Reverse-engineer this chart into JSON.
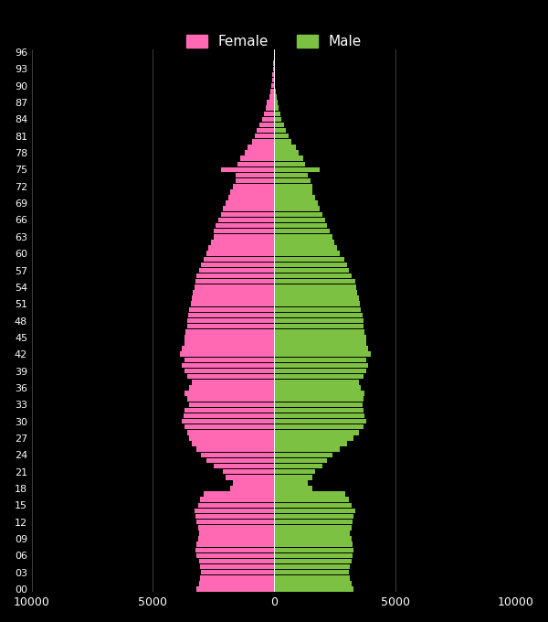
{
  "background_color": "#000000",
  "female_color": "#FF69B4",
  "male_color": "#7DC142",
  "female_label": "Female",
  "male_label": "Male",
  "xlim": [
    -10000,
    10000
  ],
  "xticks": [
    -10000,
    -5000,
    0,
    5000,
    10000
  ],
  "xlabel_color": "#ffffff",
  "ylabel_color": "#ffffff",
  "tick_label_color": "#ffffff",
  "grid_color": "#555555",
  "ages": [
    0,
    1,
    2,
    3,
    4,
    5,
    6,
    7,
    8,
    9,
    10,
    11,
    12,
    13,
    14,
    15,
    16,
    17,
    18,
    19,
    20,
    21,
    22,
    23,
    24,
    25,
    26,
    27,
    28,
    29,
    30,
    31,
    32,
    33,
    34,
    35,
    36,
    37,
    38,
    39,
    40,
    41,
    42,
    43,
    44,
    45,
    46,
    47,
    48,
    49,
    50,
    51,
    52,
    53,
    54,
    55,
    56,
    57,
    58,
    59,
    60,
    61,
    62,
    63,
    64,
    65,
    66,
    67,
    68,
    69,
    70,
    71,
    72,
    73,
    74,
    75,
    76,
    77,
    78,
    79,
    80,
    81,
    82,
    83,
    84,
    85,
    86,
    87,
    88,
    89,
    90,
    91,
    92,
    93,
    94,
    95,
    96
  ],
  "female": [
    3200,
    3100,
    3050,
    3000,
    3050,
    3100,
    3200,
    3250,
    3200,
    3150,
    3100,
    3150,
    3200,
    3250,
    3300,
    3150,
    3050,
    2900,
    1800,
    1700,
    2000,
    2100,
    2500,
    2800,
    3000,
    3200,
    3400,
    3500,
    3600,
    3700,
    3800,
    3750,
    3700,
    3500,
    3600,
    3700,
    3500,
    3400,
    3600,
    3700,
    3800,
    3700,
    3900,
    3800,
    3700,
    3700,
    3650,
    3600,
    3600,
    3550,
    3500,
    3450,
    3400,
    3350,
    3300,
    3250,
    3200,
    3100,
    3000,
    2900,
    2800,
    2700,
    2600,
    2500,
    2500,
    2400,
    2300,
    2200,
    2100,
    2000,
    1900,
    1800,
    1700,
    1600,
    1600,
    2200,
    1500,
    1400,
    1200,
    1100,
    900,
    800,
    700,
    600,
    500,
    400,
    350,
    300,
    200,
    150,
    100,
    80,
    60,
    40,
    20,
    10,
    5
  ],
  "male": [
    3300,
    3200,
    3150,
    3100,
    3150,
    3200,
    3250,
    3300,
    3250,
    3200,
    3150,
    3200,
    3250,
    3300,
    3350,
    3200,
    3100,
    2950,
    1600,
    1400,
    1600,
    1700,
    2000,
    2200,
    2400,
    2700,
    3000,
    3300,
    3500,
    3700,
    3800,
    3750,
    3700,
    3650,
    3700,
    3750,
    3600,
    3500,
    3700,
    3800,
    3900,
    3800,
    4000,
    3900,
    3800,
    3800,
    3750,
    3700,
    3700,
    3650,
    3600,
    3550,
    3500,
    3450,
    3400,
    3350,
    3200,
    3100,
    3000,
    2900,
    2700,
    2600,
    2500,
    2400,
    2300,
    2200,
    2100,
    2000,
    1900,
    1800,
    1700,
    1600,
    1600,
    1500,
    1400,
    1900,
    1300,
    1200,
    1000,
    900,
    700,
    600,
    500,
    400,
    300,
    250,
    200,
    150,
    100,
    70,
    50,
    30,
    20,
    10,
    5,
    3,
    1
  ]
}
